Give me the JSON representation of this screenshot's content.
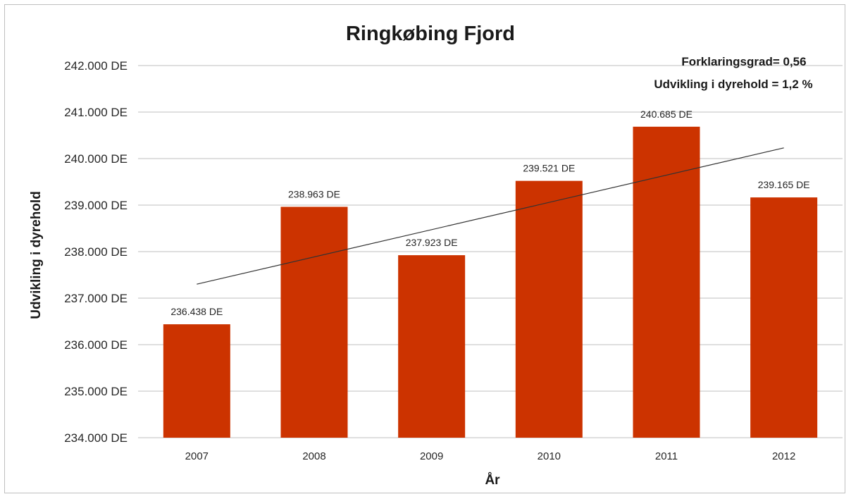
{
  "chart_data": {
    "type": "bar",
    "title": "Ringkøbing Fjord",
    "xlabel": "År",
    "ylabel": "Udvikling i dyrehold",
    "categories": [
      "2007",
      "2008",
      "2009",
      "2010",
      "2011",
      "2012"
    ],
    "values": [
      236438,
      238963,
      237923,
      239521,
      240685,
      239165
    ],
    "value_labels": [
      "236.438 DE",
      "238.963 DE",
      "237.923 DE",
      "239.521 DE",
      "240.685 DE",
      "239.165 DE"
    ],
    "ylim": [
      234000,
      242000
    ],
    "yticks": [
      234000,
      235000,
      236000,
      237000,
      238000,
      239000,
      240000,
      241000,
      242000
    ],
    "ytick_labels": [
      "234.000 DE",
      "235.000 DE",
      "236.000 DE",
      "237.000 DE",
      "238.000 DE",
      "239.000 DE",
      "240.000 DE",
      "241.000 DE",
      "242.000 DE"
    ],
    "trendline": {
      "type": "linear",
      "start": 237300,
      "end": 240230
    },
    "annotations": [
      "Forklaringsgrad= 0,56",
      "Udvikling i dyrehold = 1,2 %"
    ],
    "bar_color": "#CC3300",
    "grid": true,
    "legend": "none"
  }
}
